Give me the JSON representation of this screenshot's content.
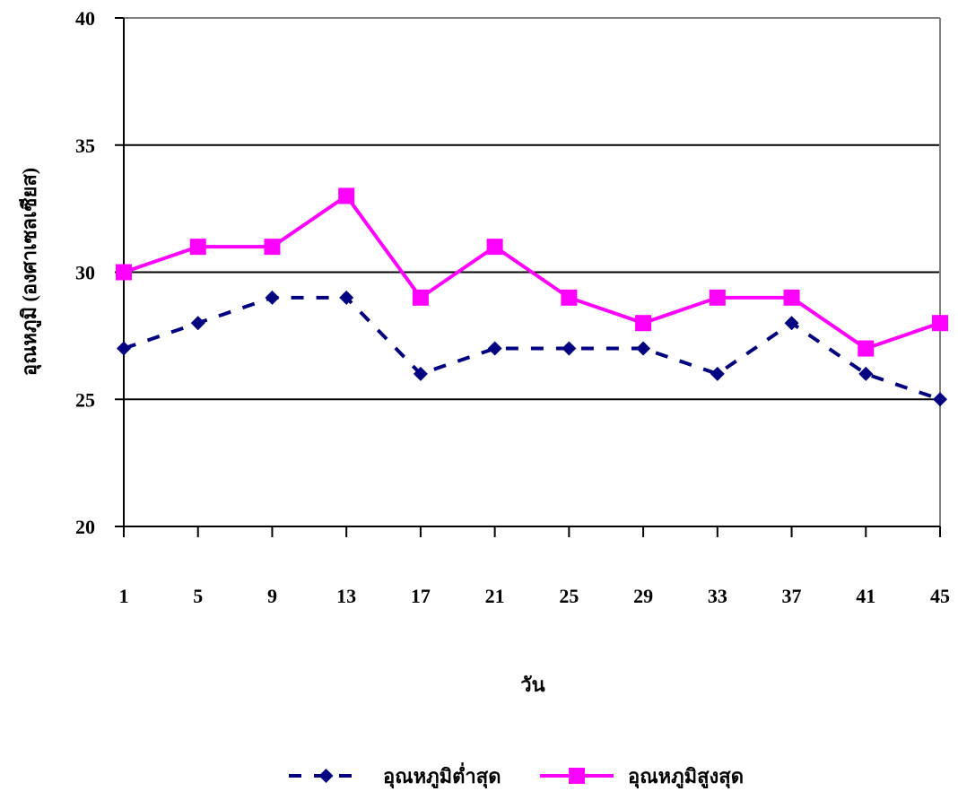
{
  "chart_data": {
    "type": "line",
    "title": "",
    "xlabel": "วัน",
    "ylabel": "อุณหภูมิ (องศาเซลเซียส)",
    "categories": [
      "1",
      "5",
      "9",
      "13",
      "17",
      "21",
      "25",
      "29",
      "33",
      "37",
      "41",
      "45"
    ],
    "ylim": [
      20,
      40
    ],
    "yticks": [
      20,
      25,
      30,
      35,
      40
    ],
    "grid": true,
    "legend_position": "bottom",
    "series": [
      {
        "name": "อุณหภูมิต่ำสุด",
        "values": [
          27,
          28,
          29,
          29,
          26,
          27,
          27,
          27,
          26,
          28,
          26,
          25
        ],
        "color": "#000080",
        "line_style": "dashed",
        "marker": "diamond"
      },
      {
        "name": "อุณหภูมิสูงสุด",
        "values": [
          30,
          31,
          31,
          33,
          29,
          31,
          29,
          28,
          29,
          29,
          27,
          28
        ],
        "color": "#FF00FF",
        "line_style": "solid",
        "marker": "square"
      }
    ]
  }
}
